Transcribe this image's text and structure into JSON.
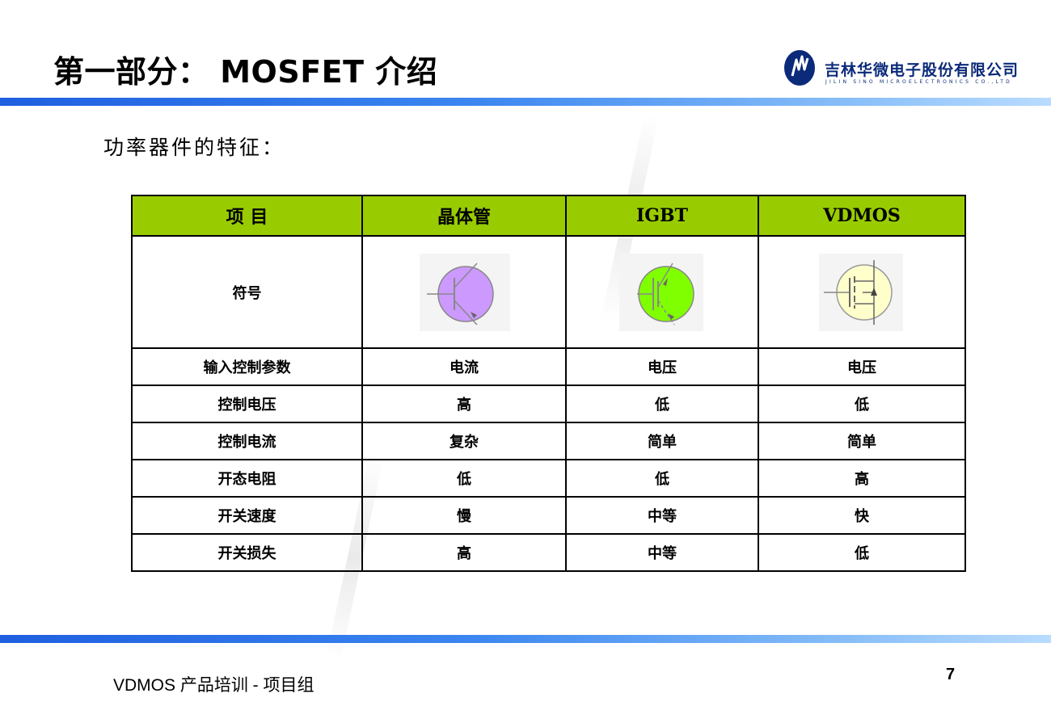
{
  "header": {
    "title": "第一部分： MOSFET 介绍",
    "logo": {
      "company_cn": "吉林华微电子股份有限公司",
      "company_en": "JILIN SINO MICROELECTRONICS CO.,LTD",
      "icon": "company-logo-icon"
    }
  },
  "subtitle": "功率器件的特征：",
  "table": {
    "headers": [
      "项 目",
      "晶体管",
      "IGBT",
      "VDMOS"
    ],
    "symbol_row": {
      "label": "符号",
      "symbols": [
        {
          "name": "bjt-transistor-symbol-icon",
          "fill": "#cc99ff"
        },
        {
          "name": "igbt-symbol-icon",
          "fill": "#80ff00"
        },
        {
          "name": "vdmos-symbol-icon",
          "fill": "#ffffcc"
        }
      ]
    },
    "rows": [
      {
        "label": "输入控制参数",
        "cells": [
          "电流",
          "电压",
          "电压"
        ]
      },
      {
        "label": "控制电压",
        "cells": [
          "高",
          "低",
          "低"
        ]
      },
      {
        "label": "控制电流",
        "cells": [
          "复杂",
          "简单",
          "简单"
        ]
      },
      {
        "label": "开态电阻",
        "cells": [
          "低",
          "低",
          "高"
        ]
      },
      {
        "label": "开关速度",
        "cells": [
          "慢",
          "中等",
          "快"
        ]
      },
      {
        "label": "开关损失",
        "cells": [
          "高",
          "中等",
          "低"
        ]
      }
    ],
    "header_color": "#99cc00"
  },
  "footer": {
    "left": "VDMOS 产品培训 - 项目组",
    "page": "7"
  },
  "colors": {
    "bar_start": "#1f5fe0",
    "bar_end": "#b9dcff",
    "logo": "#0b2a7a"
  }
}
